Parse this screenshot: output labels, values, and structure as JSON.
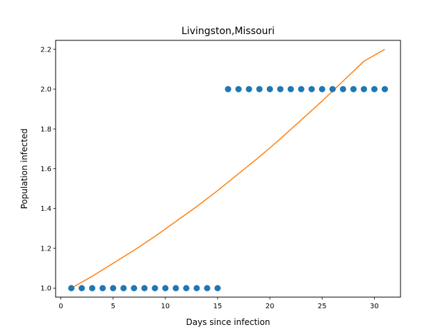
{
  "chart_data": {
    "type": "scatter",
    "title": "Livingston,Missouri",
    "xlabel": "Days since infection",
    "ylabel": "Population infected",
    "xlim": [
      -0.5,
      32.5
    ],
    "ylim": [
      0.955,
      2.245
    ],
    "xticks": [
      0,
      5,
      10,
      15,
      20,
      25,
      30
    ],
    "xtick_labels": [
      "0",
      "5",
      "10",
      "15",
      "20",
      "25",
      "30"
    ],
    "yticks": [
      1.0,
      1.2,
      1.4,
      1.6,
      1.8,
      2.0,
      2.2
    ],
    "ytick_labels": [
      "1.0",
      "1.2",
      "1.4",
      "1.6",
      "1.8",
      "2.0",
      "2.2"
    ],
    "grid": false,
    "series": [
      {
        "kind": "scatter",
        "color": "#1f77b4",
        "x": [
          1,
          2,
          3,
          4,
          5,
          6,
          7,
          8,
          9,
          10,
          11,
          12,
          13,
          14,
          15,
          16,
          17,
          18,
          19,
          20,
          21,
          22,
          23,
          24,
          25,
          26,
          27,
          28,
          29,
          30,
          31
        ],
        "y": [
          1,
          1,
          1,
          1,
          1,
          1,
          1,
          1,
          1,
          1,
          1,
          1,
          1,
          1,
          1,
          2,
          2,
          2,
          2,
          2,
          2,
          2,
          2,
          2,
          2,
          2,
          2,
          2,
          2,
          2,
          2
        ]
      },
      {
        "kind": "line",
        "color": "#ff7f0e",
        "x": [
          1,
          3,
          5,
          7,
          9,
          11,
          13,
          15,
          17,
          19,
          21,
          23,
          25,
          27,
          29,
          31
        ],
        "y": [
          1.0,
          1.06,
          1.125,
          1.19,
          1.26,
          1.335,
          1.41,
          1.49,
          1.575,
          1.66,
          1.75,
          1.845,
          1.94,
          2.04,
          2.14,
          2.2
        ]
      }
    ]
  }
}
